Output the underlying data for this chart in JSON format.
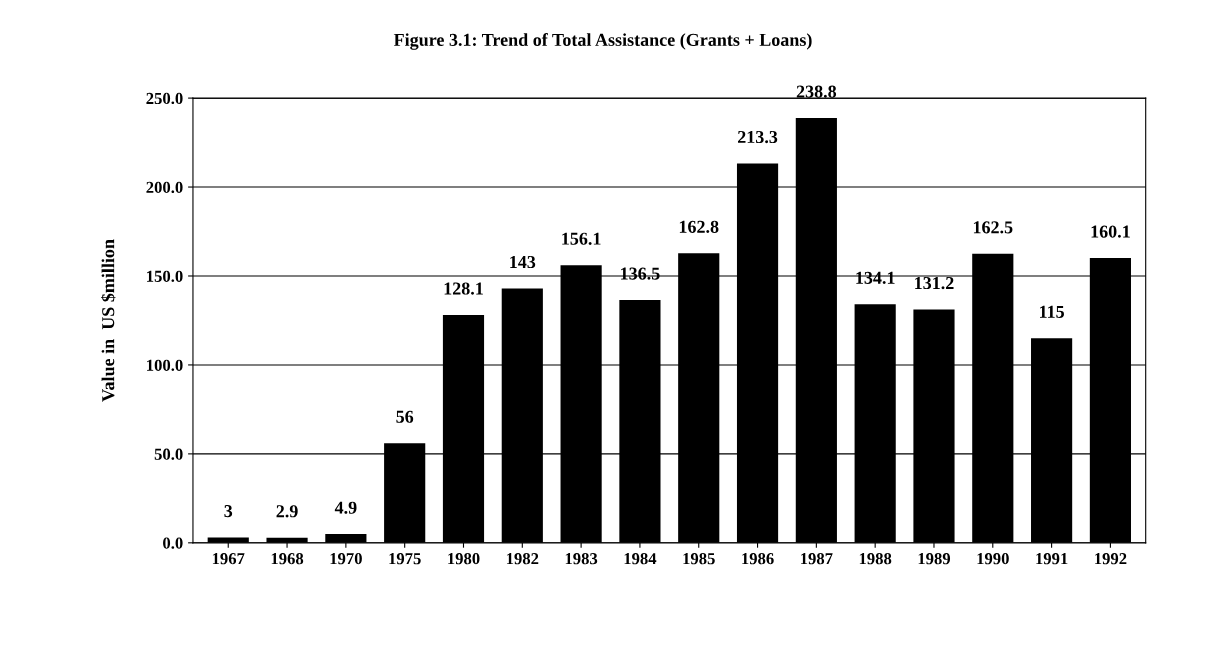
{
  "chart_data": {
    "type": "bar",
    "title": "Figure 3.1: Trend of Total Assistance (Grants + Loans)",
    "ylabel": "Value in  US $million",
    "categories": [
      "1967",
      "1968",
      "1970",
      "1975",
      "1980",
      "1982",
      "1983",
      "1984",
      "1985",
      "1986",
      "1987",
      "1988",
      "1989",
      "1990",
      "1991",
      "1992"
    ],
    "values": [
      3,
      2.9,
      4.9,
      56,
      128.1,
      143,
      156.1,
      136.5,
      162.8,
      213.3,
      238.8,
      134.1,
      131.2,
      162.5,
      115,
      160.1
    ],
    "color": "#000000",
    "ylim": [
      0,
      250
    ],
    "yticks": [
      {
        "value": 0,
        "label": "0.0"
      },
      {
        "value": 50,
        "label": "50.0"
      },
      {
        "value": 100,
        "label": "100.0"
      },
      {
        "value": 150,
        "label": "150.0"
      },
      {
        "value": 200,
        "label": "200.0"
      },
      {
        "value": 250,
        "label": "250.0"
      }
    ],
    "grid": "y",
    "data_labels": true
  }
}
